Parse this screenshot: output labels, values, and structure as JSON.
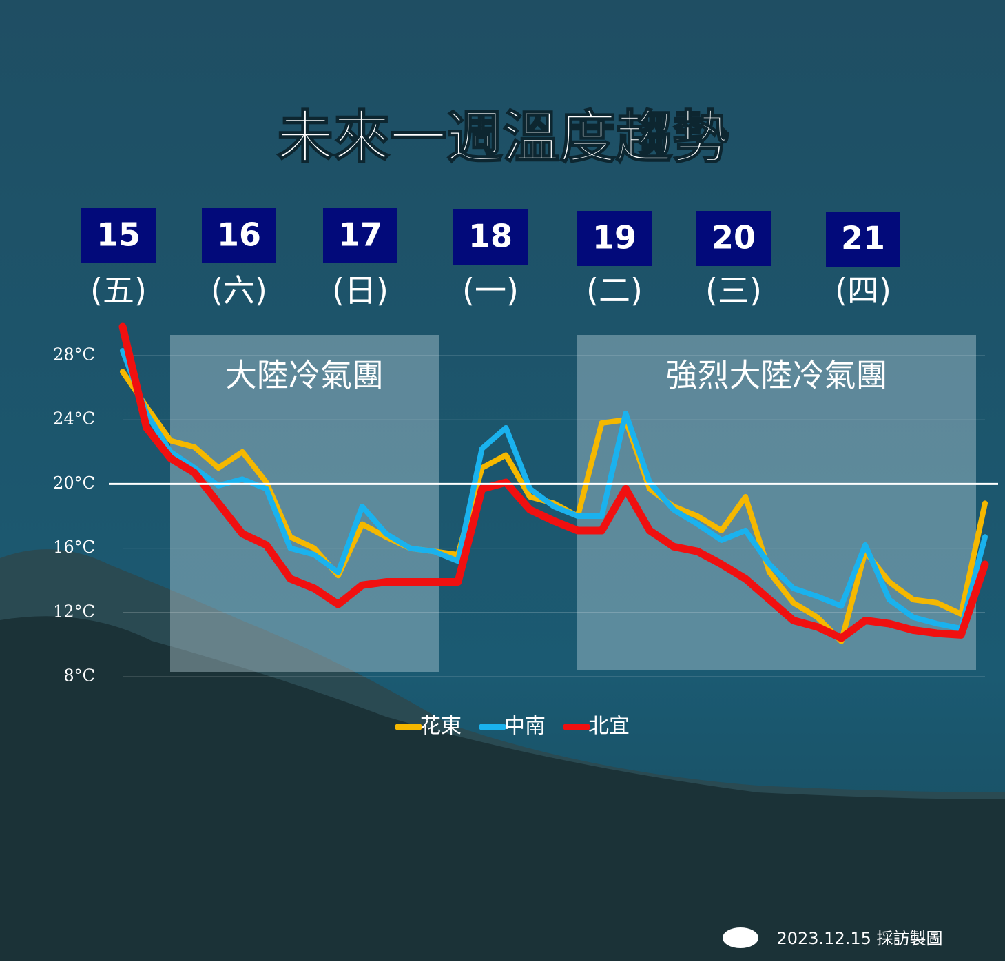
{
  "chart_data": {
    "type": "line",
    "title": "未來一週溫度趨勢",
    "days": [
      {
        "date": "15",
        "weekday": "(五)"
      },
      {
        "date": "16",
        "weekday": "(六)"
      },
      {
        "date": "17",
        "weekday": "(日)"
      },
      {
        "date": "18",
        "weekday": "(一)"
      },
      {
        "date": "19",
        "weekday": "(二)"
      },
      {
        "date": "20",
        "weekday": "(三)"
      },
      {
        "date": "21",
        "weekday": "(四)"
      }
    ],
    "annotations": [
      "大陸冷氣團",
      "強烈大陸冷氣團"
    ],
    "ylim": [
      8,
      30
    ],
    "yticks": [
      {
        "value": 8,
        "label": "8°C"
      },
      {
        "value": 12,
        "label": "12°C"
      },
      {
        "value": 16,
        "label": "16°C"
      },
      {
        "value": 20,
        "label": "20°C"
      },
      {
        "value": 24,
        "label": "24°C"
      },
      {
        "value": 28,
        "label": "28°C"
      }
    ],
    "grid": true,
    "reference_line": 20,
    "legend": "bottom",
    "series": [
      {
        "name": "花東",
        "color": "#f5b800",
        "values": [
          27.0,
          24.8,
          22.7,
          22.3,
          21.0,
          22.0,
          20.1,
          16.7,
          16.0,
          14.3,
          17.5,
          16.7,
          16.0,
          15.8,
          15.6,
          21.0,
          21.8,
          19.2,
          18.8,
          18.0,
          23.8,
          24.0,
          19.7,
          18.6,
          18.0,
          17.1,
          19.2,
          14.5,
          12.6,
          11.7,
          10.2,
          15.8,
          13.9,
          12.8,
          12.6,
          11.9,
          18.8
        ]
      },
      {
        "name": "中南",
        "color": "#1ab2ee",
        "values": [
          28.3,
          24.4,
          22.0,
          21.0,
          19.9,
          20.3,
          19.7,
          16.0,
          15.6,
          14.5,
          18.6,
          16.9,
          16.0,
          15.8,
          15.2,
          22.2,
          23.5,
          19.7,
          18.6,
          18.0,
          18.0,
          24.4,
          20.1,
          18.4,
          17.5,
          16.5,
          17.1,
          15.0,
          13.5,
          13.0,
          12.4,
          16.2,
          12.8,
          11.7,
          11.3,
          11.0,
          16.7
        ]
      },
      {
        "name": "北宜",
        "color": "#f01010",
        "values": [
          29.8,
          23.5,
          21.6,
          20.7,
          18.8,
          16.9,
          16.2,
          14.1,
          13.5,
          12.5,
          13.7,
          13.9,
          13.9,
          13.9,
          13.9,
          19.7,
          20.1,
          18.4,
          17.7,
          17.1,
          17.1,
          19.7,
          17.1,
          16.1,
          15.8,
          15.0,
          14.1,
          12.8,
          11.5,
          11.1,
          10.4,
          11.5,
          11.3,
          10.9,
          10.7,
          10.6,
          15.0
        ]
      }
    ],
    "footer": "2023.12.15 採訪製圖"
  }
}
